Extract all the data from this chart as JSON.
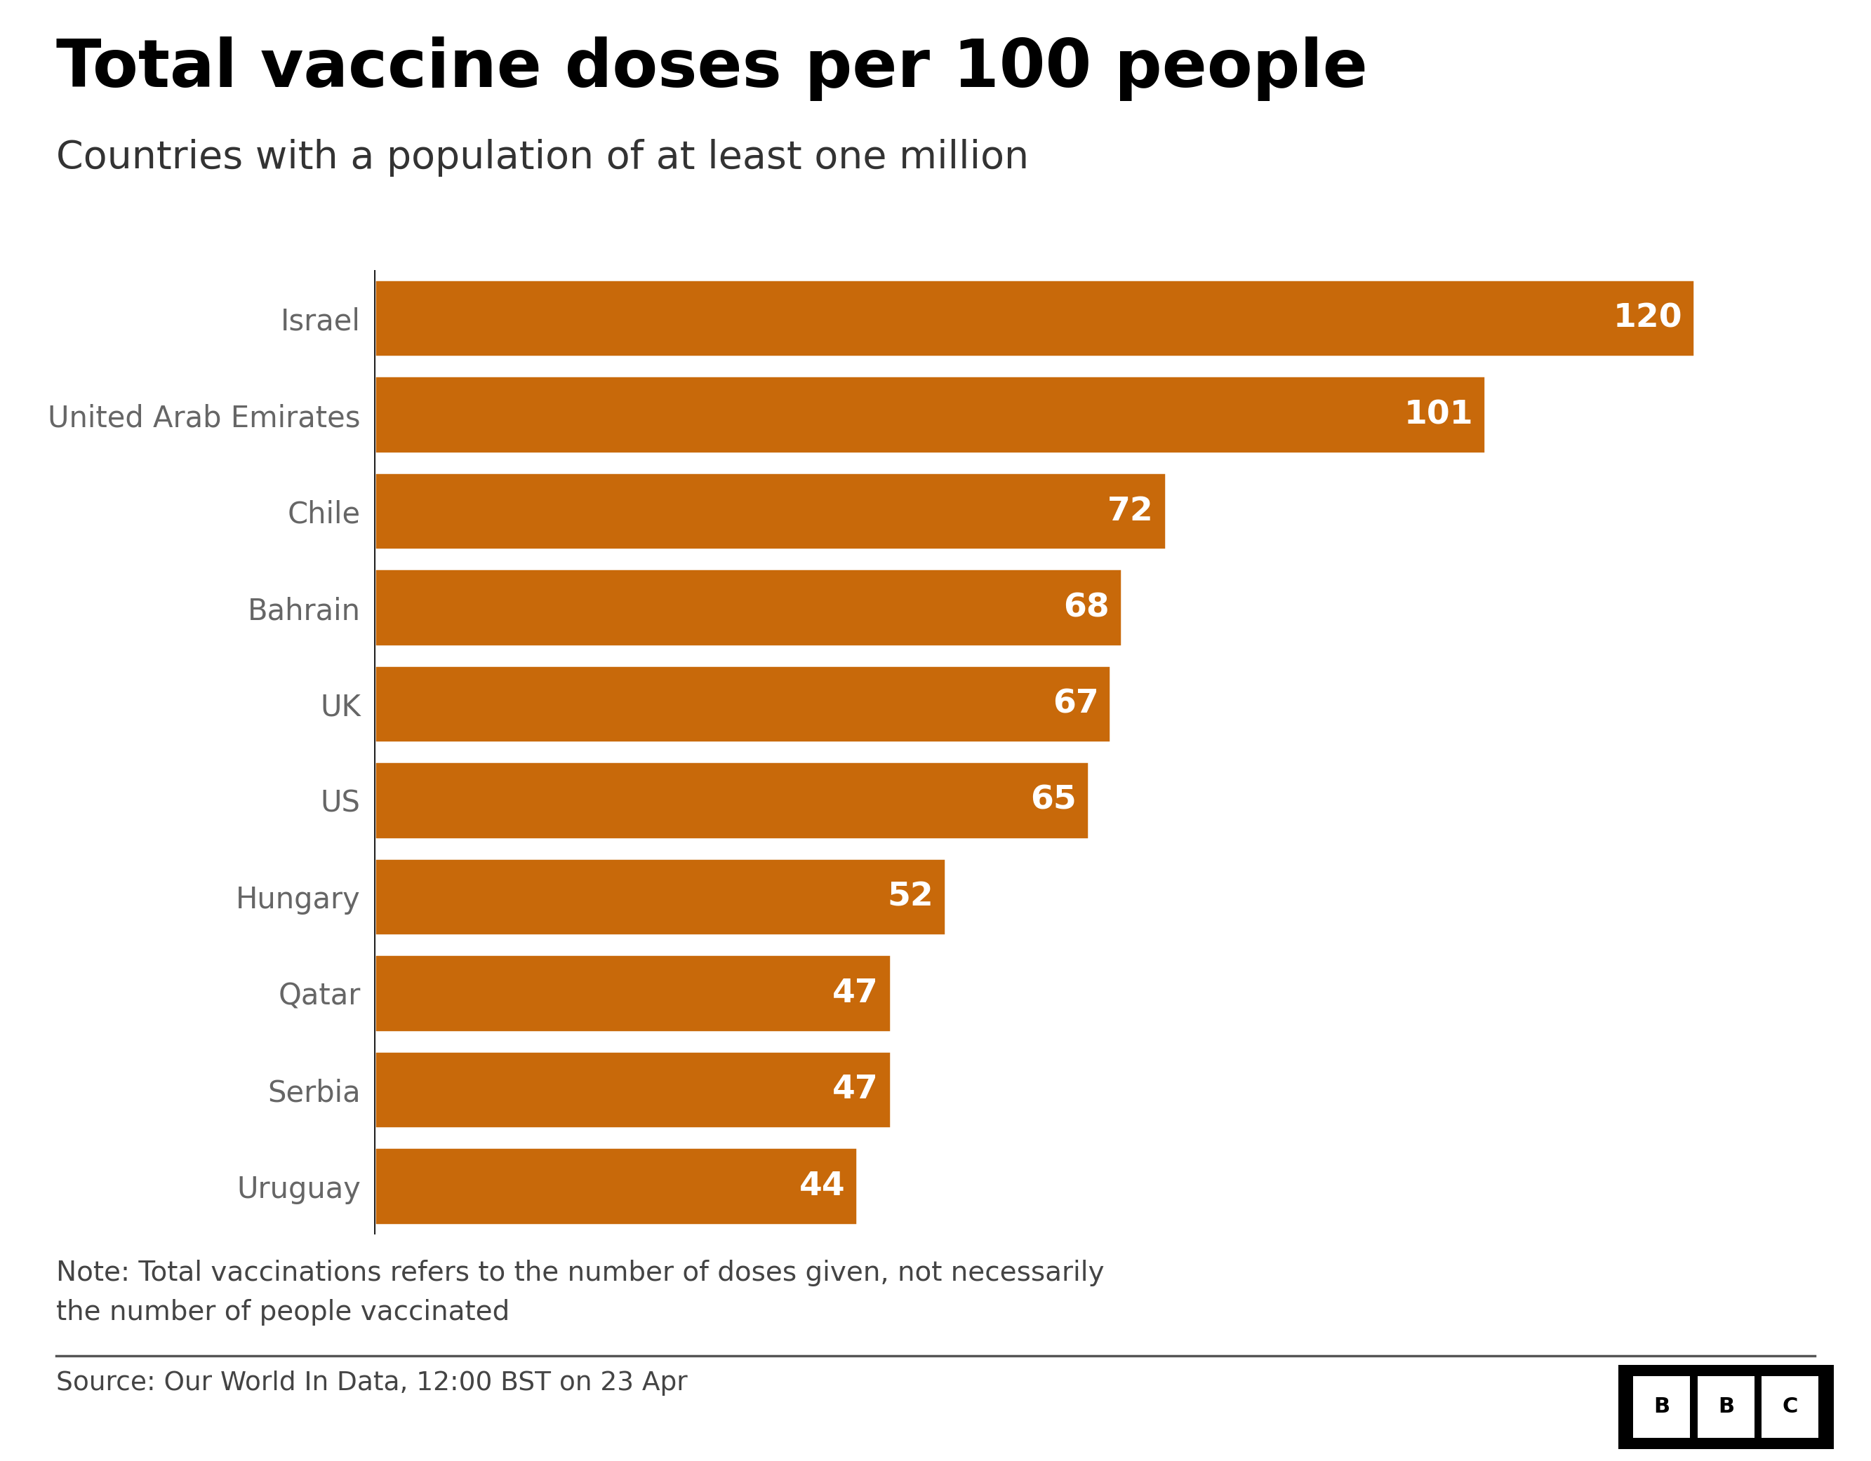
{
  "title": "Total vaccine doses per 100 people",
  "subtitle": "Countries with a population of at least one million",
  "note": "Note: Total vaccinations refers to the number of doses given, not necessarily\nthe number of people vaccinated",
  "source": "Source: Our World In Data, 12:00 BST on 23 Apr",
  "categories": [
    "Israel",
    "United Arab Emirates",
    "Chile",
    "Bahrain",
    "UK",
    "US",
    "Hungary",
    "Qatar",
    "Serbia",
    "Uruguay"
  ],
  "values": [
    120,
    101,
    72,
    68,
    67,
    65,
    52,
    47,
    47,
    44
  ],
  "bar_color": "#c8690a",
  "label_color_white": "#ffffff",
  "title_color": "#000000",
  "subtitle_color": "#333333",
  "note_color": "#444444",
  "source_color": "#444444",
  "axis_line_color": "#222222",
  "background_color": "#ffffff",
  "xlim": [
    0,
    130
  ],
  "bar_height": 0.82
}
